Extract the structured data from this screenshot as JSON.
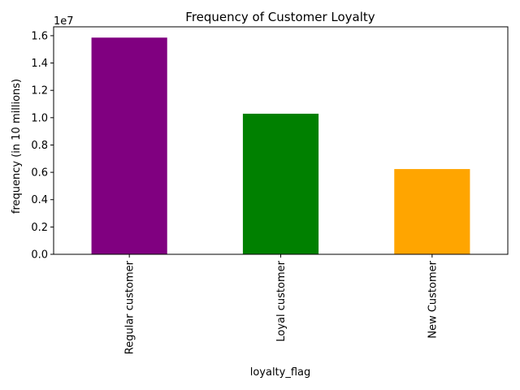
{
  "chart_data": {
    "type": "bar",
    "title": "Frequency of Customer Loyalty",
    "xlabel": "loyalty_flag",
    "ylabel": "frequency (in 10 millions)",
    "y_offset_text": "1e7",
    "categories": [
      "Regular customer",
      "Loyal customer",
      "New Customer"
    ],
    "values": [
      15860000,
      10290000,
      6240000
    ],
    "colors": [
      "#800080",
      "#008000",
      "#ffa500"
    ],
    "ylim": [
      0,
      16650000
    ],
    "yticks": [
      0,
      2000000,
      4000000,
      6000000,
      8000000,
      10000000,
      12000000,
      14000000,
      16000000
    ],
    "ytick_labels": [
      "0.0",
      "0.2",
      "0.4",
      "0.6",
      "0.8",
      "1.0",
      "1.2",
      "1.4",
      "1.6"
    ],
    "grid": false,
    "legend": "none"
  }
}
